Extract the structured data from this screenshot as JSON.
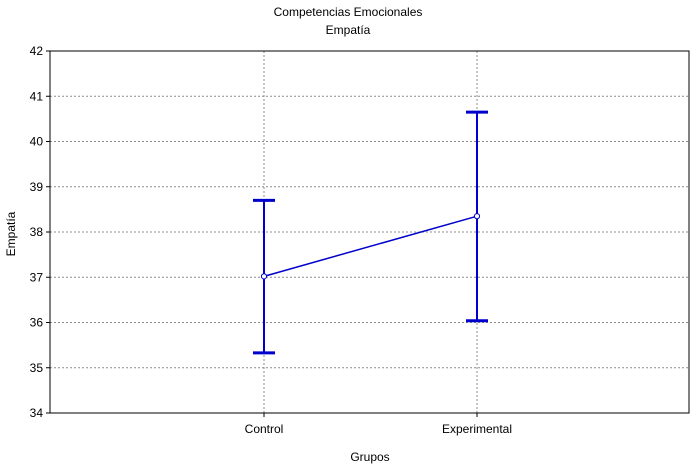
{
  "chart_data": {
    "type": "line",
    "title": "Competencias Emocionales",
    "subtitle": "Empatía",
    "xlabel": "Grupos",
    "ylabel": "Empatía",
    "categories": [
      "Control",
      "Experimental"
    ],
    "series": [
      {
        "values": [
          37.02,
          38.35
        ],
        "error_low": [
          35.33,
          36.04
        ],
        "error_high": [
          38.7,
          40.65
        ],
        "color": "#0000cc"
      }
    ],
    "ylim": [
      34,
      42
    ],
    "yticks": [
      "34",
      "35",
      "36",
      "37",
      "38",
      "39",
      "40",
      "41",
      "42"
    ],
    "grid": true
  }
}
